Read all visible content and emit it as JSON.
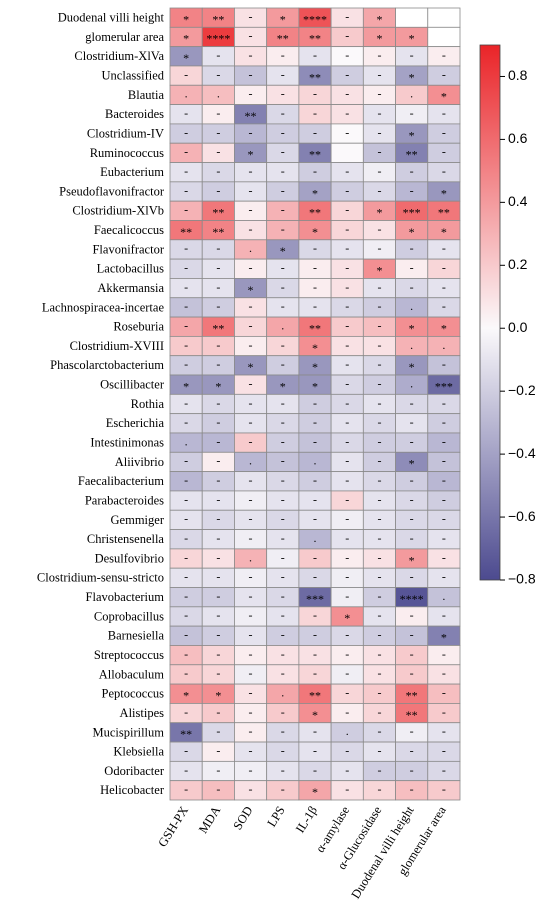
{
  "chart_data": {
    "type": "heatmap",
    "x_categories": [
      "GSH-PX",
      "MDA",
      "SOD",
      "LPS",
      "IL-1β",
      "α-amylase",
      "α-Glucosidase",
      "Duodenal villi height",
      "glomerular area"
    ],
    "y_categories": [
      "Duodenal villi height",
      "glomerular area",
      "Clostridium-XlVa",
      "Unclassified",
      "Blautia",
      "Bacteroides",
      "Clostridium-IV",
      "Ruminococcus",
      "Eubacterium",
      "Pseudoflavonifractor",
      "Clostridium-XlVb",
      "Faecalicoccus",
      "Flavonifractor",
      "Lactobacillus",
      "Akkermansia",
      "Lachnospiracea-incertae",
      "Roseburia",
      "Clostridium-XVIII",
      "Phascolarctobacterium",
      "Oscillibacter",
      "Rothia",
      "Escherichia",
      "Intestinimonas",
      "Aliivibrio",
      "Faecalibacterium",
      "Parabacteroides",
      "Gemmiger",
      "Christensenella",
      "Desulfovibrio",
      "Clostridium-sensu-stricto",
      "Flavobacterium",
      "Coprobacillus",
      "Barnesiella",
      "Streptococcus",
      "Allobaculum",
      "Peptococcus",
      "Alistipes",
      "Mucispirillum",
      "Klebsiella",
      "Odoribacter",
      "Helicobacter"
    ],
    "values": [
      [
        0.5,
        0.5,
        0.1,
        0.4,
        0.7,
        0.1,
        0.35,
        null,
        null
      ],
      [
        0.4,
        0.8,
        0.1,
        0.5,
        0.5,
        0.2,
        0.4,
        0.4,
        null
      ],
      [
        -0.45,
        -0.1,
        0.1,
        0.05,
        -0.1,
        0,
        0.05,
        -0.1,
        0.05
      ],
      [
        0.15,
        -0.15,
        -0.25,
        -0.1,
        -0.5,
        -0.2,
        -0.1,
        -0.4,
        -0.2
      ],
      [
        0.3,
        0.25,
        0.05,
        0.1,
        0.15,
        0.1,
        0.05,
        0.2,
        0.45
      ],
      [
        -0.1,
        0.05,
        -0.55,
        -0.15,
        0.15,
        0.1,
        -0.1,
        -0.05,
        -0.1
      ],
      [
        -0.2,
        -0.2,
        -0.3,
        -0.2,
        -0.2,
        0,
        -0.1,
        -0.45,
        -0.2
      ],
      [
        0.3,
        0.1,
        -0.45,
        -0.15,
        -0.55,
        0,
        -0.25,
        -0.55,
        -0.2
      ],
      [
        -0.1,
        -0.15,
        -0.1,
        -0.1,
        -0.2,
        -0.1,
        -0.05,
        -0.2,
        -0.15
      ],
      [
        -0.15,
        -0.2,
        -0.1,
        -0.2,
        -0.4,
        -0.2,
        -0.15,
        -0.3,
        -0.45
      ],
      [
        0.3,
        0.55,
        0.05,
        0.3,
        0.55,
        0.15,
        0.4,
        0.6,
        0.55
      ],
      [
        0.55,
        0.5,
        0.1,
        0.3,
        0.45,
        0.15,
        0.1,
        0.4,
        0.4
      ],
      [
        -0.15,
        -0.15,
        0.3,
        -0.45,
        -0.15,
        -0.1,
        -0.05,
        -0.2,
        -0.1
      ],
      [
        -0.15,
        -0.1,
        0.05,
        -0.1,
        0.05,
        0.1,
        0.45,
        0.05,
        0.15
      ],
      [
        -0.1,
        -0.1,
        -0.45,
        -0.15,
        0.05,
        0.1,
        -0.1,
        -0.15,
        -0.1
      ],
      [
        -0.25,
        -0.2,
        0.1,
        -0.1,
        -0.1,
        -0.15,
        -0.2,
        -0.3,
        -0.15
      ],
      [
        0.35,
        0.55,
        0.15,
        0.35,
        0.55,
        0.2,
        0.25,
        0.45,
        0.45
      ],
      [
        0.2,
        0.2,
        0.05,
        0.15,
        0.45,
        0.1,
        0.1,
        0.3,
        0.3
      ],
      [
        -0.2,
        -0.2,
        -0.45,
        -0.2,
        -0.45,
        -0.1,
        -0.15,
        -0.45,
        -0.25
      ],
      [
        -0.45,
        -0.45,
        0.1,
        -0.45,
        -0.45,
        -0.15,
        -0.2,
        -0.35,
        -0.65
      ],
      [
        -0.1,
        -0.15,
        -0.1,
        -0.1,
        -0.2,
        -0.15,
        -0.1,
        -0.15,
        -0.15
      ],
      [
        -0.15,
        -0.2,
        -0.1,
        -0.15,
        -0.2,
        -0.1,
        -0.15,
        -0.1,
        -0.2
      ],
      [
        -0.3,
        -0.3,
        0.2,
        -0.2,
        -0.25,
        -0.15,
        -0.2,
        -0.2,
        -0.3
      ],
      [
        -0.2,
        0.05,
        -0.3,
        -0.25,
        -0.3,
        -0.1,
        -0.2,
        -0.5,
        -0.25
      ],
      [
        -0.3,
        -0.2,
        -0.1,
        -0.15,
        -0.2,
        -0.1,
        -0.15,
        -0.2,
        -0.3
      ],
      [
        -0.1,
        -0.1,
        -0.05,
        -0.1,
        -0.1,
        0.15,
        -0.1,
        -0.15,
        -0.2
      ],
      [
        -0.1,
        -0.15,
        -0.1,
        -0.15,
        -0.1,
        -0.05,
        -0.1,
        -0.15,
        -0.15
      ],
      [
        -0.15,
        -0.1,
        -0.05,
        -0.1,
        -0.3,
        -0.1,
        -0.1,
        -0.15,
        -0.1
      ],
      [
        0.15,
        0.1,
        0.3,
        -0.05,
        0.2,
        0.05,
        0.1,
        0.4,
        0.1
      ],
      [
        -0.1,
        -0.1,
        -0.05,
        -0.1,
        -0.15,
        -0.05,
        -0.1,
        -0.15,
        -0.1
      ],
      [
        -0.2,
        -0.2,
        -0.1,
        -0.15,
        -0.65,
        -0.05,
        -0.2,
        -0.75,
        -0.25
      ],
      [
        -0.15,
        -0.1,
        -0.05,
        -0.1,
        0.15,
        0.45,
        -0.1,
        0.05,
        -0.1
      ],
      [
        -0.25,
        -0.2,
        -0.1,
        -0.2,
        -0.2,
        -0.15,
        -0.2,
        -0.25,
        -0.55
      ],
      [
        0.25,
        0.15,
        0.05,
        0.1,
        0.1,
        0.05,
        0.1,
        0.2,
        0.05
      ],
      [
        0.2,
        0.15,
        -0.05,
        0.1,
        0.15,
        -0.05,
        0.1,
        0.2,
        0.1
      ],
      [
        0.45,
        0.45,
        0.1,
        0.35,
        0.55,
        0.15,
        0.2,
        0.55,
        0.25
      ],
      [
        0.15,
        0.2,
        0.05,
        0.2,
        0.45,
        0.05,
        0.15,
        0.55,
        0.2
      ],
      [
        -0.6,
        -0.15,
        0.05,
        -0.15,
        -0.1,
        -0.2,
        -0.15,
        -0.05,
        -0.1
      ],
      [
        -0.15,
        0.05,
        -0.1,
        -0.15,
        -0.1,
        -0.15,
        -0.1,
        -0.15,
        -0.15
      ],
      [
        -0.1,
        -0.05,
        -0.05,
        -0.1,
        -0.15,
        -0.1,
        -0.2,
        -0.2,
        -0.15
      ],
      [
        0.2,
        0.25,
        0.1,
        0.2,
        0.35,
        0.1,
        0.15,
        0.25,
        0.2
      ]
    ],
    "value_labels": [
      [
        "*",
        "**",
        "-",
        "*",
        "****",
        "-",
        "*",
        null,
        null
      ],
      [
        "*",
        "****",
        "-",
        "**",
        "**",
        "-",
        "*",
        "*",
        null
      ],
      [
        "*",
        "-",
        "-",
        "-",
        "-",
        "-",
        "-",
        "-",
        "-"
      ],
      [
        "-",
        "-",
        "-",
        "-",
        "**",
        "-",
        "-",
        "*",
        "-"
      ],
      [
        ".",
        ".",
        "-",
        "-",
        "-",
        "-",
        "-",
        ".",
        "*"
      ],
      [
        "-",
        "-",
        "**",
        "-",
        "-",
        "-",
        "-",
        "-",
        "-"
      ],
      [
        "-",
        "-",
        "-",
        "-",
        "-",
        "-",
        "-",
        "*",
        "-"
      ],
      [
        "-",
        "-",
        "*",
        "-",
        "**",
        null,
        "-",
        "**",
        "-"
      ],
      [
        "-",
        "-",
        "-",
        "-",
        "-",
        "-",
        "-",
        "-",
        "-"
      ],
      [
        "-",
        "-",
        "-",
        "-",
        "*",
        "-",
        "-",
        "-",
        "*"
      ],
      [
        "-",
        "**",
        "-",
        "-",
        "**",
        "-",
        "*",
        "***",
        "**"
      ],
      [
        "**",
        "**",
        "-",
        "-",
        "*",
        "-",
        "-",
        "*",
        "*"
      ],
      [
        "-",
        "-",
        ".",
        "*",
        "-",
        "-",
        "-",
        "-",
        "-"
      ],
      [
        "-",
        "-",
        "-",
        "-",
        "-",
        "-",
        "*",
        "-",
        "-"
      ],
      [
        "-",
        "-",
        "*",
        "-",
        "-",
        "-",
        "-",
        "-",
        "-"
      ],
      [
        "-",
        "-",
        "-",
        "-",
        "-",
        "-",
        "-",
        ".",
        "-"
      ],
      [
        "-",
        "**",
        "-",
        ".",
        "**",
        "-",
        "-",
        "*",
        "*"
      ],
      [
        "-",
        "-",
        "-",
        "-",
        "*",
        "-",
        "-",
        ".",
        "."
      ],
      [
        "-",
        "-",
        "*",
        "-",
        "*",
        "-",
        "-",
        "*",
        "-"
      ],
      [
        "*",
        "*",
        "-",
        "*",
        "*",
        "-",
        "-",
        ".",
        "***"
      ],
      [
        "-",
        "-",
        "-",
        "-",
        "-",
        "-",
        "-",
        "-",
        "-"
      ],
      [
        "-",
        "-",
        "-",
        "-",
        "-",
        "-",
        "-",
        "-",
        "-"
      ],
      [
        ".",
        "-",
        "-",
        "-",
        "-",
        "-",
        "-",
        "-",
        "-"
      ],
      [
        "-",
        "-",
        ".",
        "-",
        ".",
        "-",
        "-",
        "*",
        "-"
      ],
      [
        "-",
        "-",
        "-",
        "-",
        "-",
        "-",
        "-",
        "-",
        "-"
      ],
      [
        "-",
        "-",
        "-",
        "-",
        "-",
        "-",
        "-",
        "-",
        "-"
      ],
      [
        "-",
        "-",
        "-",
        "-",
        "-",
        "-",
        "-",
        "-",
        "-"
      ],
      [
        "-",
        "-",
        "-",
        "-",
        ".",
        "-",
        "-",
        "-",
        "-"
      ],
      [
        "-",
        "-",
        ".",
        "-",
        "-",
        "-",
        "-",
        "*",
        "-"
      ],
      [
        "-",
        "-",
        "-",
        "-",
        "-",
        "-",
        "-",
        "-",
        "-"
      ],
      [
        "-",
        "-",
        "-",
        "-",
        "***",
        "-",
        "-",
        "****",
        "."
      ],
      [
        "-",
        "-",
        "-",
        "-",
        "-",
        "*",
        "-",
        "-",
        "-"
      ],
      [
        "-",
        "-",
        "-",
        "-",
        "-",
        "-",
        "-",
        "-",
        "*"
      ],
      [
        "-",
        "-",
        "-",
        "-",
        "-",
        "-",
        "-",
        "-",
        "-"
      ],
      [
        "-",
        "-",
        "-",
        "-",
        "-",
        "-",
        "-",
        "-",
        "-"
      ],
      [
        "*",
        "*",
        "-",
        ".",
        "**",
        "-",
        "-",
        "**",
        "-"
      ],
      [
        "-",
        "-",
        "-",
        "-",
        "*",
        "-",
        "-",
        "**",
        "-"
      ],
      [
        "**",
        "-",
        "-",
        "-",
        "-",
        ".",
        "-",
        "-",
        "-"
      ],
      [
        "-",
        "-",
        "-",
        "-",
        "-",
        "-",
        "-",
        "-",
        "-"
      ],
      [
        "-",
        "-",
        "-",
        "-",
        "-",
        "-",
        "-",
        "-",
        "-"
      ],
      [
        "-",
        "-",
        "-",
        "-",
        "*",
        "-",
        "-",
        "-",
        "-"
      ]
    ],
    "zlim": [
      -0.8,
      0.9
    ],
    "zticks": [
      {
        "value": -0.8,
        "label": "−0.8"
      },
      {
        "value": -0.6,
        "label": "−0.6"
      },
      {
        "value": -0.4,
        "label": "−0.4"
      },
      {
        "value": -0.2,
        "label": "−0.2"
      },
      {
        "value": 0,
        "label": "0.0"
      },
      0.2,
      0.4,
      0.6,
      0.8
    ],
    "colormap": [
      "#4c4a8f",
      "#fbf9fb",
      "#ea2428"
    ]
  }
}
